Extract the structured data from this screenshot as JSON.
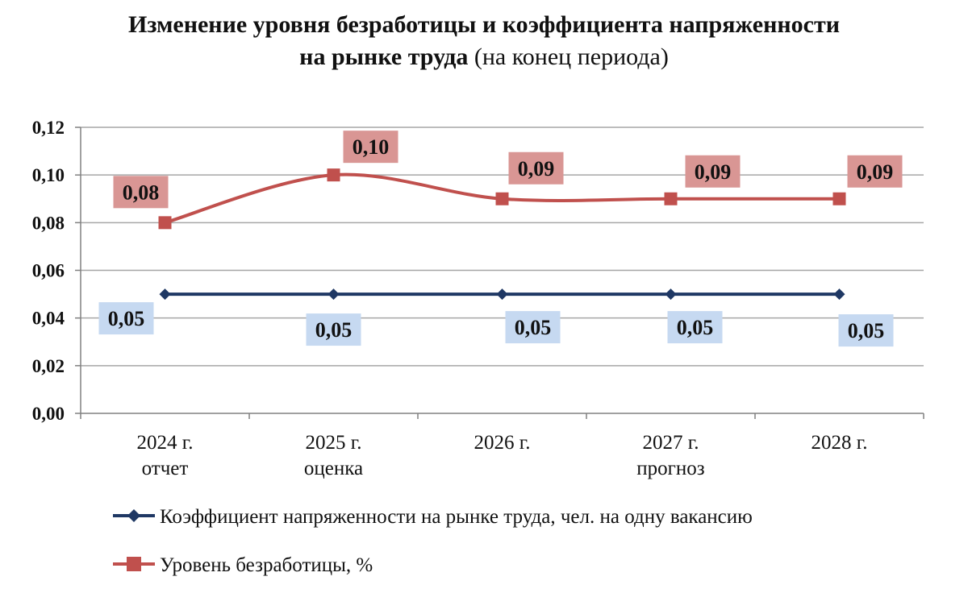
{
  "chart_data": {
    "type": "line",
    "title": "Изменение уровня безработицы и коэффициента напряженности",
    "title_line2_bold": "на рынке труда",
    "title_line2_normal": "(на конец периода)",
    "categories": [
      [
        "2024 г.",
        "отчет"
      ],
      [
        "2025 г.",
        "оценка"
      ],
      [
        "2026 г."
      ],
      [
        "2027 г.",
        "прогноз"
      ],
      [
        "2028 г."
      ]
    ],
    "ylim": [
      0,
      0.12
    ],
    "yticks": [
      "0,00",
      "0,02",
      "0,04",
      "0,06",
      "0,08",
      "0,10",
      "0,12"
    ],
    "grid": true,
    "series": [
      {
        "name": "Коэффициент напряженности на рынке труда, чел. на одну вакансию",
        "values": [
          0.05,
          0.05,
          0.05,
          0.05,
          0.05
        ],
        "labels": [
          "0,05",
          "0,05",
          "0,05",
          "0,05",
          "0,05"
        ],
        "color": "#1f3864",
        "label_bg": "#c6d9f1",
        "marker": "diamond",
        "smooth": false,
        "label_position": "below"
      },
      {
        "name": "Уровень безработицы, %",
        "values": [
          0.08,
          0.1,
          0.09,
          0.09,
          0.09
        ],
        "labels": [
          "0,08",
          "0,10",
          "0,09",
          "0,09",
          "0,09"
        ],
        "color": "#c0504d",
        "label_bg": "#d99694",
        "marker": "square",
        "smooth": true,
        "label_position": "above"
      }
    ],
    "legend_position": "bottom-left"
  }
}
